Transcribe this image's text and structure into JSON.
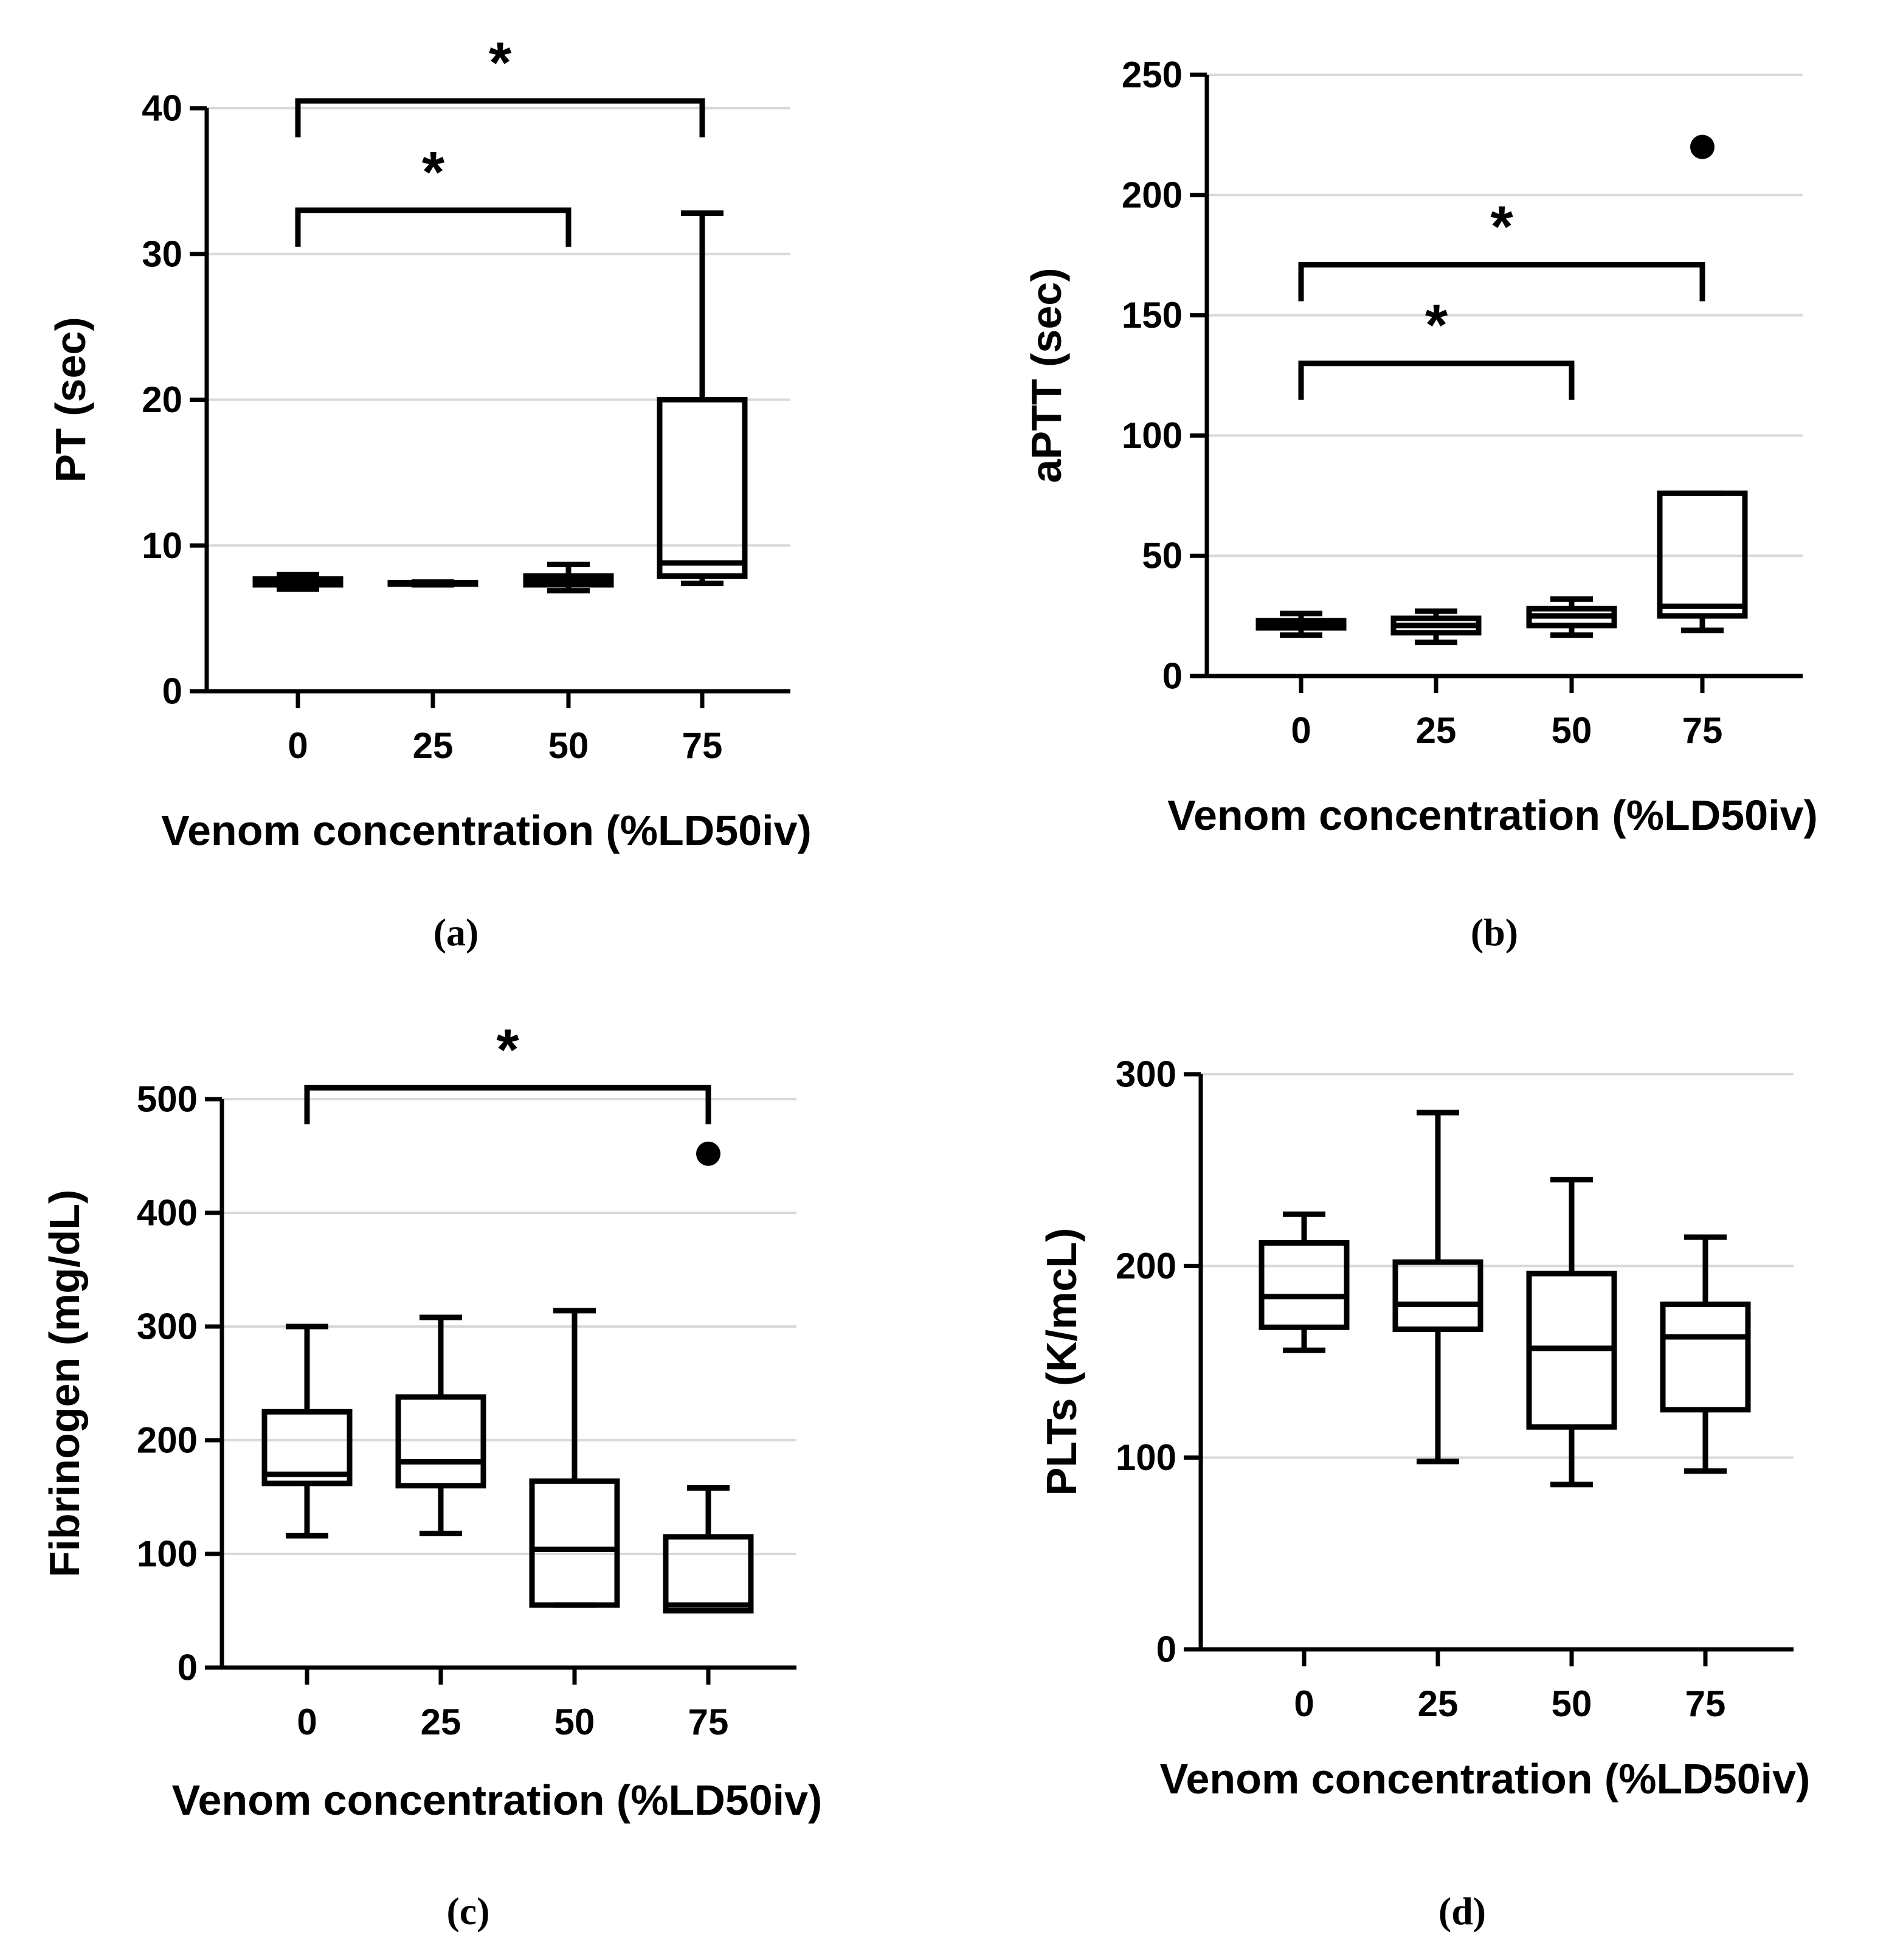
{
  "chart_data": [
    {
      "panel": "(a)",
      "type": "box",
      "ylabel": "PT (sec)",
      "xlabel": "Venom concentration (%LD50iv)",
      "categories": [
        "0",
        "25",
        "50",
        "75"
      ],
      "ylim": [
        0,
        40
      ],
      "yticks": [
        0,
        10,
        20,
        30,
        40
      ],
      "grid": true,
      "boxes": [
        {
          "category": "0",
          "min": 7.0,
          "q1": 7.3,
          "median": 7.5,
          "q3": 7.7,
          "max": 8.0
        },
        {
          "category": "25",
          "min": 7.3,
          "q1": 7.35,
          "median": 7.4,
          "q3": 7.45,
          "max": 7.5
        },
        {
          "category": "50",
          "min": 6.9,
          "q1": 7.3,
          "median": 7.6,
          "q3": 7.9,
          "max": 8.7
        },
        {
          "category": "75",
          "min": 7.4,
          "q1": 7.9,
          "median": 8.8,
          "q3": 20.0,
          "max": 32.8
        }
      ],
      "outliers": [],
      "significance": [
        {
          "from": "0",
          "to": "50",
          "y": 33,
          "label": "*"
        },
        {
          "from": "0",
          "to": "75",
          "y": 40.5,
          "label": "*"
        }
      ]
    },
    {
      "panel": "(b)",
      "type": "box",
      "ylabel": "aPTT (sec)",
      "xlabel": "Venom concentration (%LD50iv)",
      "categories": [
        "0",
        "25",
        "50",
        "75"
      ],
      "ylim": [
        0,
        250
      ],
      "yticks": [
        0,
        50,
        100,
        150,
        200,
        250
      ],
      "grid": true,
      "boxes": [
        {
          "category": "0",
          "min": 17,
          "q1": 20,
          "median": 22,
          "q3": 23,
          "max": 26
        },
        {
          "category": "25",
          "min": 14,
          "q1": 18,
          "median": 21,
          "q3": 24,
          "max": 27
        },
        {
          "category": "50",
          "min": 17,
          "q1": 21,
          "median": 25,
          "q3": 28,
          "max": 32
        },
        {
          "category": "75",
          "min": 19,
          "q1": 25,
          "median": 29,
          "q3": 76,
          "max": 76
        }
      ],
      "outliers": [
        {
          "category": "75",
          "value": 220
        }
      ],
      "significance": [
        {
          "from": "0",
          "to": "50",
          "y": 130,
          "label": "*"
        },
        {
          "from": "0",
          "to": "75",
          "y": 171,
          "label": "*"
        }
      ]
    },
    {
      "panel": "(c)",
      "type": "box",
      "ylabel": "Fibrinogen (mg/dL)",
      "xlabel": "Venom concentration (%LD50iv)",
      "categories": [
        "0",
        "25",
        "50",
        "75"
      ],
      "ylim": [
        0,
        500
      ],
      "yticks": [
        0,
        100,
        200,
        300,
        400,
        500
      ],
      "grid": true,
      "boxes": [
        {
          "category": "0",
          "min": 116,
          "q1": 162,
          "median": 170,
          "q3": 225,
          "max": 300
        },
        {
          "category": "25",
          "min": 118,
          "q1": 160,
          "median": 181,
          "q3": 238,
          "max": 308
        },
        {
          "category": "50",
          "min": 55,
          "q1": 55,
          "median": 104,
          "q3": 164,
          "max": 314
        },
        {
          "category": "75",
          "min": 50,
          "q1": 50,
          "median": 55,
          "q3": 115,
          "max": 158
        }
      ],
      "outliers": [
        {
          "category": "75",
          "value": 452
        }
      ],
      "significance": [
        {
          "from": "0",
          "to": "75",
          "y": 510,
          "label": "*"
        }
      ]
    },
    {
      "panel": "(d)",
      "type": "box",
      "ylabel": "PLTs (K/mcL)",
      "xlabel": "Venom concentration (%LD50iv)",
      "categories": [
        "0",
        "25",
        "50",
        "75"
      ],
      "ylim": [
        0,
        300
      ],
      "yticks": [
        0,
        100,
        200,
        300
      ],
      "grid": true,
      "boxes": [
        {
          "category": "0",
          "min": 156,
          "q1": 168,
          "median": 184,
          "q3": 212,
          "max": 227
        },
        {
          "category": "25",
          "min": 98,
          "q1": 167,
          "median": 180,
          "q3": 202,
          "max": 280
        },
        {
          "category": "50",
          "min": 86,
          "q1": 116,
          "median": 157,
          "q3": 196,
          "max": 245
        },
        {
          "category": "75",
          "min": 93,
          "q1": 125,
          "median": 163,
          "q3": 180,
          "max": 215
        }
      ],
      "outliers": [],
      "significance": []
    }
  ]
}
